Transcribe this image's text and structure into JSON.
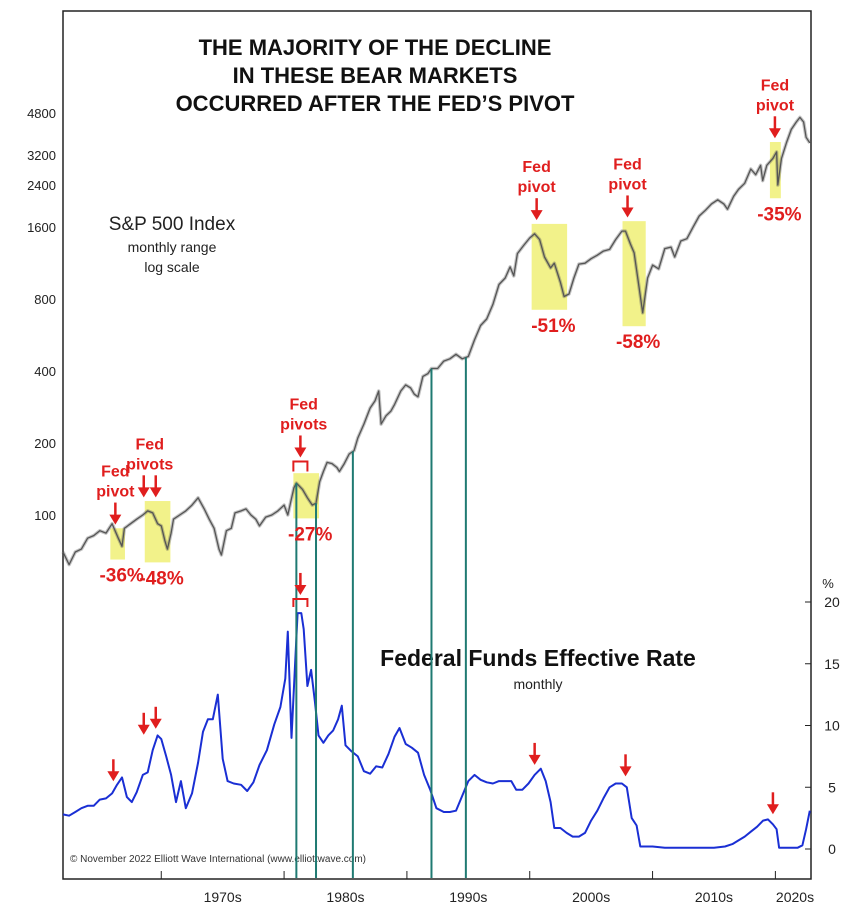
{
  "colors": {
    "spx_line": "#555555",
    "fed_line": "#1a2fd4",
    "pivot_red": "#e01e1e",
    "highlight": "#f2f28a",
    "teal_lines": "#1f7a72",
    "frame": "#222222"
  },
  "chart_data": [
    {
      "type": "line",
      "title": "THE MAJORITY OF THE DECLINE\nIN THESE BEAR MARKETS\nOCCURRED AFTER THE FED’S PIVOT",
      "title_lines": [
        "THE MAJORITY OF THE DECLINE",
        "IN THESE BEAR MARKETS",
        "OCCURRED AFTER THE FED’S PIVOT"
      ],
      "series_label": "S&P 500 Index",
      "series_sublabels": [
        "monthly range",
        "log scale"
      ],
      "y_scale": "log",
      "y_ticks": [
        100,
        200,
        400,
        800,
        1600,
        2400,
        3200,
        4800
      ],
      "y_tick_labels": [
        "100",
        "200",
        "400",
        "800",
        "1600",
        "2400",
        "3200",
        "4800"
      ],
      "x": [
        1962.0,
        1962.5,
        1963.0,
        1963.5,
        1964.0,
        1964.5,
        1965.0,
        1965.5,
        1966.0,
        1966.5,
        1966.8,
        1967.0,
        1967.5,
        1968.0,
        1968.5,
        1968.9,
        1969.3,
        1969.7,
        1970.0,
        1970.3,
        1970.5,
        1970.8,
        1971.0,
        1971.5,
        1972.0,
        1972.5,
        1973.0,
        1973.5,
        1973.9,
        1974.3,
        1974.7,
        1974.9,
        1975.3,
        1975.7,
        1976.0,
        1976.5,
        1976.9,
        1977.3,
        1977.7,
        1978.0,
        1978.5,
        1979.0,
        1979.5,
        1980.0,
        1980.3,
        1980.8,
        1981.0,
        1981.5,
        1981.9,
        1982.3,
        1982.6,
        1982.9,
        1983.2,
        1983.5,
        1983.9,
        1984.3,
        1984.5,
        1984.9,
        1985.3,
        1985.7,
        1986.0,
        1986.5,
        1987.0,
        1987.4,
        1987.7,
        1987.9,
        1988.3,
        1988.7,
        1989.0,
        1989.5,
        1989.9,
        1990.3,
        1990.6,
        1990.9,
        1991.3,
        1991.7,
        1992.0,
        1992.5,
        1993.0,
        1993.5,
        1994.0,
        1994.5,
        1995.0,
        1995.5,
        1996.0,
        1996.5,
        1997.0,
        1997.5,
        1998.0,
        1998.4,
        1998.7,
        1999.0,
        1999.5,
        2000.0,
        2000.4,
        2000.8,
        2001.2,
        2001.7,
        2002.0,
        2002.5,
        2002.8,
        2003.2,
        2003.6,
        2004.0,
        2004.5,
        2005.0,
        2005.5,
        2006.0,
        2006.5,
        2007.0,
        2007.5,
        2007.8,
        2008.2,
        2008.5,
        2008.9,
        2009.2,
        2009.6,
        2010.0,
        2010.5,
        2011.0,
        2011.5,
        2011.8,
        2012.3,
        2012.8,
        2013.3,
        2013.8,
        2014.3,
        2014.8,
        2015.3,
        2015.8,
        2016.1,
        2016.6,
        2017.0,
        2017.5,
        2018.0,
        2018.4,
        2018.8,
        2018.97,
        2019.3,
        2019.8,
        2020.1,
        2020.2,
        2020.5,
        2020.9,
        2021.3,
        2021.7,
        2022.0,
        2022.3,
        2022.5,
        2022.8
      ],
      "y": [
        70,
        62,
        70,
        72,
        80,
        82,
        86,
        84,
        92,
        80,
        74,
        88,
        92,
        96,
        100,
        104,
        102,
        92,
        90,
        78,
        72,
        84,
        96,
        100,
        104,
        110,
        118,
        106,
        96,
        88,
        72,
        68,
        86,
        88,
        102,
        104,
        106,
        100,
        96,
        90,
        98,
        100,
        104,
        110,
        100,
        130,
        136,
        128,
        118,
        110,
        112,
        138,
        152,
        166,
        164,
        158,
        152,
        164,
        180,
        186,
        210,
        240,
        280,
        300,
        330,
        240,
        260,
        272,
        290,
        330,
        350,
        340,
        320,
        312,
        380,
        390,
        410,
        410,
        440,
        450,
        470,
        450,
        460,
        540,
        620,
        660,
        760,
        920,
        980,
        1090,
        1000,
        1240,
        1340,
        1440,
        1500,
        1420,
        1200,
        1080,
        1130,
        940,
        820,
        840,
        980,
        1120,
        1130,
        1180,
        1220,
        1270,
        1290,
        1420,
        1540,
        1540,
        1360,
        1250,
        900,
        700,
        980,
        1110,
        1070,
        1300,
        1320,
        1200,
        1400,
        1430,
        1600,
        1780,
        1880,
        2000,
        2080,
        2000,
        1900,
        2150,
        2300,
        2440,
        2800,
        2650,
        2900,
        2500,
        2900,
        3100,
        3300,
        2400,
        3100,
        3600,
        4100,
        4400,
        4600,
        4400,
        3800,
        3600
      ],
      "pivots": [
        {
          "label": [
            "Fed",
            "pivot"
          ],
          "decline": "-36%",
          "start": 1966.1,
          "end": 1966.8
        },
        {
          "label": [
            "Fed",
            "pivots"
          ],
          "decline": "-48%",
          "start": 1968.9,
          "end": 1970.5
        },
        {
          "label": [
            "Fed",
            "pivots"
          ],
          "decline": "-27%",
          "start": 1981.0,
          "end": 1982.6
        },
        {
          "label": [
            "Fed",
            "pivot"
          ],
          "decline": "-51%",
          "start": 2000.4,
          "end": 2002.8
        },
        {
          "label": [
            "Fed",
            "pivot"
          ],
          "decline": "-58%",
          "start": 2007.8,
          "end": 2009.2
        },
        {
          "label": [
            "Fed",
            "pivot"
          ],
          "decline": "-35%",
          "start": 2019.8,
          "end": 2020.2
        }
      ]
    },
    {
      "type": "line",
      "series_label": "Federal Funds Effective Rate",
      "series_sublabel": "monthly",
      "y_unit": "%",
      "y_ticks": [
        0,
        5,
        10,
        15,
        20
      ],
      "y_tick_labels": [
        "0",
        "5",
        "10",
        "15",
        "20"
      ],
      "x": [
        1962.0,
        1962.5,
        1963.0,
        1963.5,
        1964.0,
        1964.5,
        1965.0,
        1965.5,
        1966.0,
        1966.4,
        1966.8,
        1967.2,
        1967.6,
        1968.0,
        1968.5,
        1968.9,
        1969.3,
        1969.7,
        1970.0,
        1970.4,
        1970.8,
        1971.2,
        1971.6,
        1972.0,
        1972.5,
        1973.0,
        1973.4,
        1973.8,
        1974.2,
        1974.6,
        1975.0,
        1975.4,
        1975.9,
        1976.5,
        1977.0,
        1977.5,
        1978.0,
        1978.6,
        1979.2,
        1979.7,
        1980.1,
        1980.3,
        1980.6,
        1980.9,
        1981.1,
        1981.4,
        1981.6,
        1981.9,
        1982.2,
        1982.5,
        1982.8,
        1983.2,
        1983.6,
        1984.0,
        1984.4,
        1984.7,
        1985.0,
        1985.5,
        1986.0,
        1986.5,
        1987.0,
        1987.5,
        1988.0,
        1988.5,
        1989.0,
        1989.4,
        1989.9,
        1990.4,
        1990.9,
        1991.4,
        1991.9,
        1992.4,
        1993.0,
        1993.5,
        1994.0,
        1994.5,
        1995.0,
        1995.5,
        1996.0,
        1996.5,
        1997.0,
        1997.5,
        1998.0,
        1998.5,
        1998.9,
        1999.4,
        1999.9,
        2000.4,
        2000.9,
        2001.3,
        2001.7,
        2002.0,
        2002.5,
        2003.0,
        2003.5,
        2004.0,
        2004.5,
        2005.0,
        2005.5,
        2006.0,
        2006.5,
        2007.0,
        2007.5,
        2007.9,
        2008.3,
        2008.7,
        2009.0,
        2010.0,
        2011.0,
        2012.0,
        2013.0,
        2014.0,
        2015.0,
        2015.9,
        2016.5,
        2017.0,
        2017.5,
        2018.0,
        2018.5,
        2019.0,
        2019.4,
        2019.8,
        2020.1,
        2020.3,
        2021.0,
        2021.8,
        2022.2,
        2022.5,
        2022.8
      ],
      "y": [
        2.8,
        2.7,
        3.0,
        3.3,
        3.5,
        3.5,
        4.0,
        4.1,
        4.5,
        5.2,
        5.8,
        4.2,
        3.8,
        4.6,
        6.0,
        6.2,
        8.0,
        9.2,
        8.9,
        7.5,
        6.0,
        3.8,
        5.5,
        3.3,
        4.5,
        7.0,
        9.5,
        10.5,
        10.5,
        12.5,
        7.3,
        5.5,
        5.3,
        5.2,
        4.7,
        5.4,
        6.8,
        8.0,
        10.1,
        11.5,
        13.8,
        17.6,
        9.0,
        15.0,
        19.1,
        19.1,
        17.8,
        13.2,
        14.5,
        12.0,
        9.2,
        8.6,
        9.2,
        9.6,
        10.5,
        11.6,
        8.4,
        7.9,
        7.5,
        6.3,
        6.1,
        6.7,
        6.6,
        7.7,
        9.1,
        9.8,
        8.5,
        8.2,
        7.8,
        6.0,
        4.8,
        3.3,
        3.0,
        3.0,
        3.1,
        4.3,
        5.5,
        6.0,
        5.6,
        5.4,
        5.3,
        5.5,
        5.5,
        5.5,
        4.8,
        4.8,
        5.3,
        6.0,
        6.5,
        5.5,
        3.8,
        1.7,
        1.7,
        1.3,
        1.0,
        1.0,
        1.3,
        2.3,
        3.1,
        4.1,
        5.0,
        5.3,
        5.3,
        5.0,
        2.5,
        1.9,
        0.2,
        0.2,
        0.1,
        0.1,
        0.1,
        0.1,
        0.1,
        0.2,
        0.4,
        0.7,
        1.0,
        1.4,
        1.8,
        2.3,
        2.4,
        2.0,
        1.6,
        0.1,
        0.1,
        0.1,
        0.3,
        1.6,
        3.1
      ]
    }
  ],
  "x_axis": {
    "tick_labels": [
      "1970s",
      "1980s",
      "1990s",
      "2000s",
      "2010s",
      "2020s"
    ],
    "tick_years": [
      1970,
      1980,
      1990,
      2000,
      2010,
      2020
    ],
    "range": [
      1962,
      2022.9
    ]
  },
  "cutting_lines": [
    1981.0,
    1982.6,
    1985.6,
    1992.0,
    1994.8
  ],
  "copyright": "© November 2022 Elliott Wave International (www.elliottwave.com)"
}
